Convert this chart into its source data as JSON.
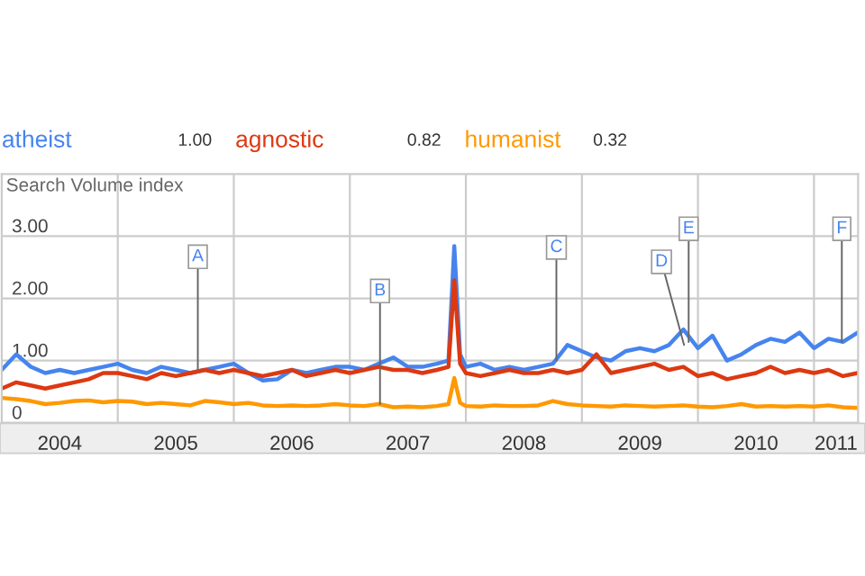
{
  "chart_data": {
    "type": "line",
    "ylabel": "Search Volume index",
    "x": [
      2004.0,
      2004.125,
      2004.25,
      2004.375,
      2004.5,
      2004.625,
      2004.75,
      2004.875,
      2005.0,
      2005.125,
      2005.25,
      2005.375,
      2005.5,
      2005.625,
      2005.75,
      2005.875,
      2006.0,
      2006.125,
      2006.25,
      2006.375,
      2006.5,
      2006.625,
      2006.75,
      2006.875,
      2007.0,
      2007.125,
      2007.25,
      2007.375,
      2007.5,
      2007.625,
      2007.75,
      2007.85,
      2007.9,
      2007.95,
      2008.0,
      2008.125,
      2008.25,
      2008.375,
      2008.5,
      2008.625,
      2008.75,
      2008.875,
      2009.0,
      2009.125,
      2009.25,
      2009.375,
      2009.5,
      2009.625,
      2009.75,
      2009.875,
      2010.0,
      2010.125,
      2010.25,
      2010.375,
      2010.5,
      2010.625,
      2010.75,
      2010.875,
      2011.0,
      2011.125,
      2011.25,
      2011.375
    ],
    "series": [
      {
        "name": "atheist",
        "color": "#4684ee",
        "values": [
          0.85,
          1.1,
          0.9,
          0.8,
          0.85,
          0.8,
          0.85,
          0.9,
          0.95,
          0.85,
          0.8,
          0.9,
          0.85,
          0.8,
          0.85,
          0.9,
          0.95,
          0.8,
          0.68,
          0.7,
          0.85,
          0.8,
          0.85,
          0.9,
          0.9,
          0.85,
          0.95,
          1.05,
          0.9,
          0.9,
          0.95,
          1.0,
          2.84,
          1.1,
          0.9,
          0.95,
          0.85,
          0.9,
          0.85,
          0.9,
          0.95,
          1.25,
          1.15,
          1.05,
          1.0,
          1.15,
          1.2,
          1.15,
          1.25,
          1.5,
          1.2,
          1.4,
          1.0,
          1.1,
          1.25,
          1.35,
          1.3,
          1.45,
          1.2,
          1.35,
          1.3,
          1.45
        ]
      },
      {
        "name": "agnostic",
        "color": "#dc3912",
        "values": [
          0.55,
          0.65,
          0.6,
          0.55,
          0.6,
          0.65,
          0.7,
          0.8,
          0.8,
          0.75,
          0.7,
          0.8,
          0.75,
          0.8,
          0.85,
          0.8,
          0.85,
          0.8,
          0.75,
          0.8,
          0.85,
          0.75,
          0.8,
          0.85,
          0.8,
          0.85,
          0.9,
          0.85,
          0.85,
          0.8,
          0.85,
          0.9,
          2.29,
          0.95,
          0.8,
          0.75,
          0.8,
          0.85,
          0.8,
          0.8,
          0.85,
          0.8,
          0.85,
          1.1,
          0.8,
          0.85,
          0.9,
          0.95,
          0.85,
          0.9,
          0.75,
          0.8,
          0.7,
          0.75,
          0.8,
          0.9,
          0.8,
          0.85,
          0.8,
          0.85,
          0.75,
          0.8
        ]
      },
      {
        "name": "humanist",
        "color": "#ff9900",
        "values": [
          0.4,
          0.38,
          0.35,
          0.3,
          0.32,
          0.35,
          0.36,
          0.33,
          0.35,
          0.34,
          0.3,
          0.32,
          0.3,
          0.28,
          0.35,
          0.33,
          0.3,
          0.32,
          0.28,
          0.27,
          0.28,
          0.27,
          0.28,
          0.3,
          0.28,
          0.27,
          0.3,
          0.25,
          0.26,
          0.25,
          0.27,
          0.3,
          0.72,
          0.32,
          0.27,
          0.26,
          0.28,
          0.27,
          0.27,
          0.28,
          0.35,
          0.3,
          0.28,
          0.27,
          0.26,
          0.28,
          0.27,
          0.26,
          0.27,
          0.28,
          0.26,
          0.25,
          0.27,
          0.3,
          0.26,
          0.27,
          0.26,
          0.27,
          0.26,
          0.28,
          0.25,
          0.24
        ]
      }
    ],
    "annotations": [
      "1.00",
      "0.82",
      "0.32",
      {
        "text": "A",
        "x": 2005.69,
        "y": 0.85
      },
      {
        "text": "B",
        "x": 2007.26,
        "y": 0.3
      },
      {
        "text": "C",
        "x": 2008.78,
        "y": 1.0
      },
      {
        "text": "D",
        "x": 2009.88,
        "y": 1.25
      },
      {
        "text": "E",
        "x": 2009.92,
        "y": 1.3
      },
      {
        "text": "F",
        "x": 2011.24,
        "y": 1.3
      }
    ],
    "xlim": [
      2004.0,
      2011.38
    ],
    "xticks": [
      {
        "value": 2005,
        "label": null
      },
      {
        "value": 2006,
        "label": null
      },
      {
        "value": 2007,
        "label": null
      },
      {
        "value": 2008,
        "label": null
      },
      {
        "value": 2009,
        "label": null
      },
      {
        "value": 2010,
        "label": null
      },
      {
        "value": 2011,
        "label": null
      },
      {
        "value": 2004.5,
        "label": "2004"
      },
      {
        "value": 2005.5,
        "label": "2005"
      },
      {
        "value": 2006.5,
        "label": "2006"
      },
      {
        "value": 2007.5,
        "label": "2007"
      },
      {
        "value": 2008.5,
        "label": "2008"
      },
      {
        "value": 2009.5,
        "label": "2009"
      },
      {
        "value": 2010.5,
        "label": "2010"
      },
      {
        "value": 2011.19,
        "label": "2011"
      }
    ],
    "ylim": [
      0,
      4
    ],
    "yticks": [
      0,
      {
        "value": 1,
        "label": "1.00"
      },
      {
        "value": 2,
        "label": "2.00"
      },
      {
        "value": 3,
        "label": "3.00"
      }
    ],
    "grid": true,
    "legend": "top left",
    "line_style": "solid"
  }
}
